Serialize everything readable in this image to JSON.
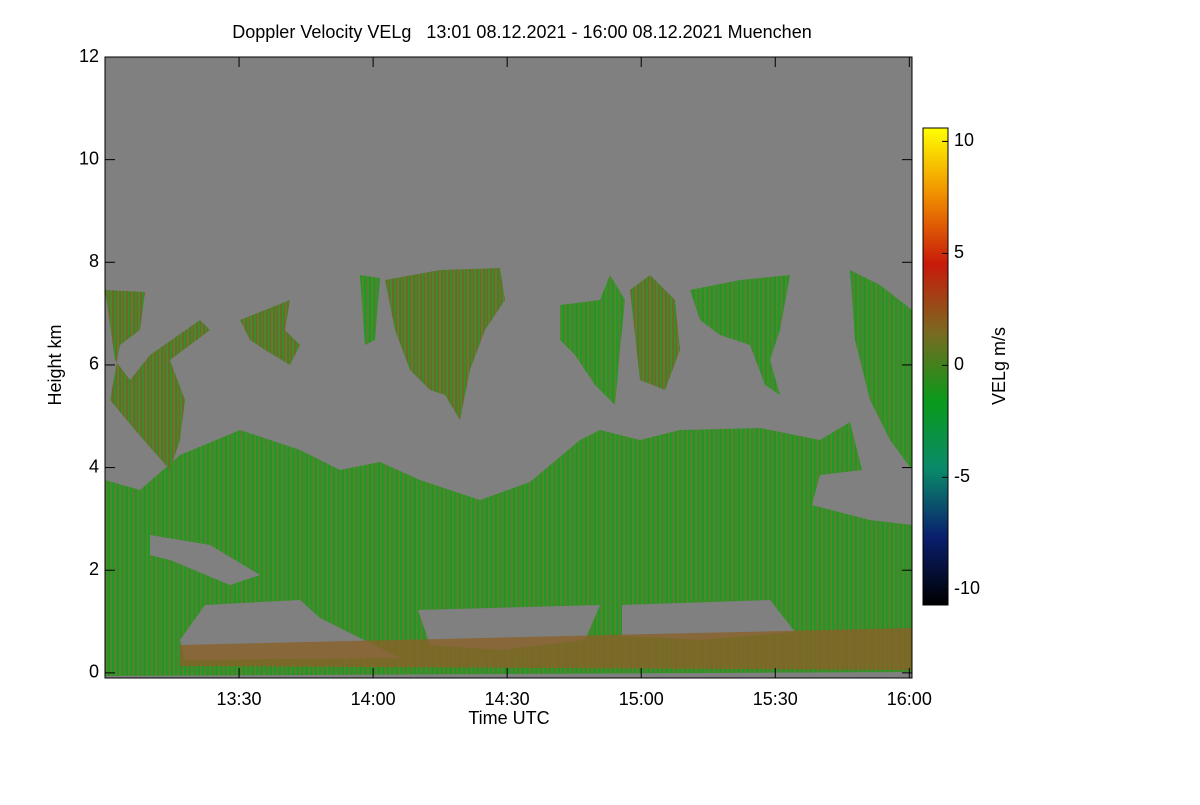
{
  "chart_data": {
    "type": "heatmap",
    "title": "Doppler Velocity VELg   13:01 08.12.2021 - 16:00 08.12.2021 Muenchen",
    "x_label": "Time UTC",
    "y_label": "Height km",
    "xlim": [
      13.0,
      16.01
    ],
    "xticks": [
      {
        "value": 13.5,
        "label": "13:30"
      },
      {
        "value": 14.0,
        "label": "14:00"
      },
      {
        "value": 14.5,
        "label": "14:30"
      },
      {
        "value": 15.0,
        "label": "15:00"
      },
      {
        "value": 15.5,
        "label": "15:30"
      },
      {
        "value": 16.0,
        "label": "16:00"
      }
    ],
    "ylim": [
      -0.1,
      12
    ],
    "yticks": [
      0,
      2,
      4,
      6,
      8,
      10,
      12
    ],
    "colorbar_label": "VELg m/s",
    "clim": [
      -10.7,
      10.6
    ],
    "cticks": [
      -10,
      -5,
      0,
      5,
      10
    ],
    "colormap": [
      "#000000",
      "#0a1f6e",
      "#0a8a6a",
      "#0a9a1a",
      "#7a6a20",
      "#c81a0a",
      "#f08c00",
      "#ffff00"
    ],
    "background_color": "#808080"
  }
}
